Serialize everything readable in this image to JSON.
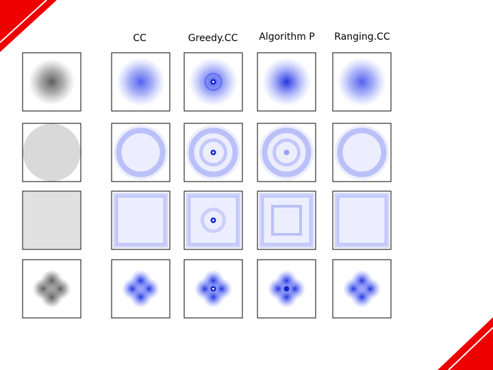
{
  "header": {
    "columns": [
      "CC",
      "Greedy.CC",
      "Algorithm P",
      "Ranging.CC"
    ]
  }
}
